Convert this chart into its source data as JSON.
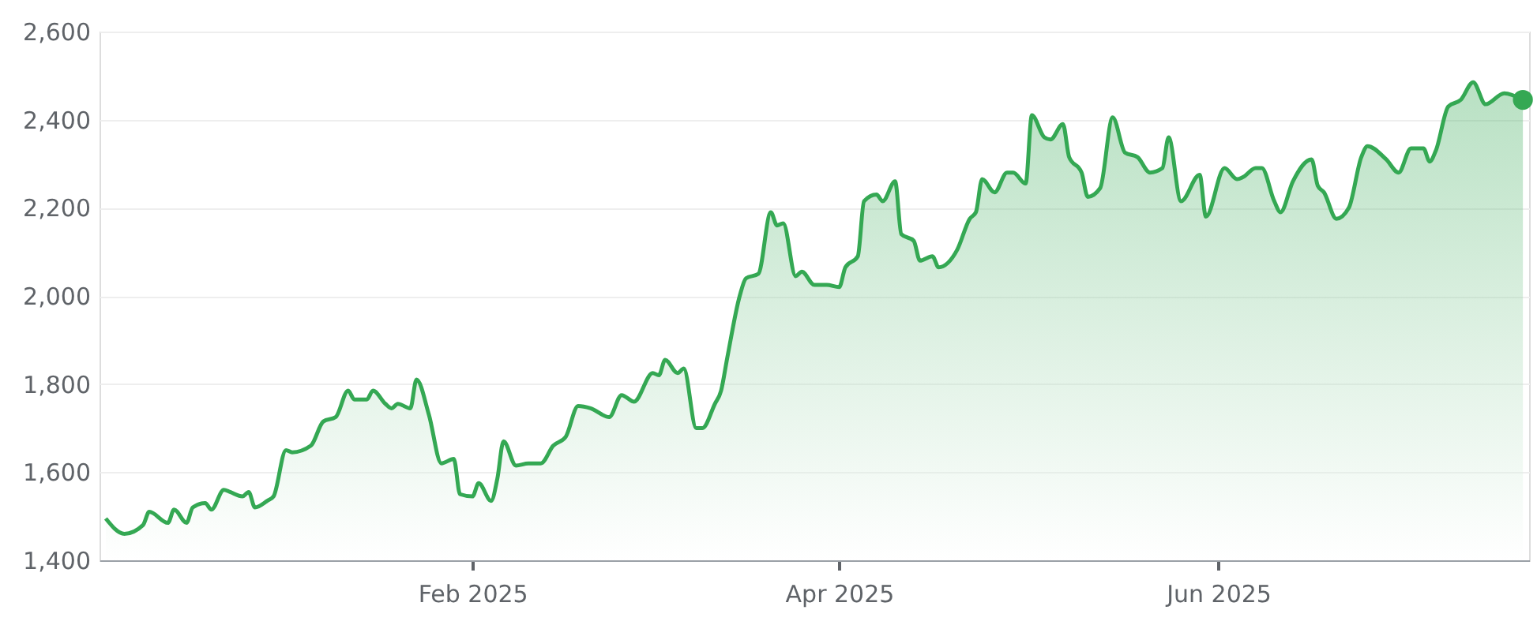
{
  "chart_data": {
    "type": "area",
    "xlim": [
      "2024-12-03",
      "2025-07-21"
    ],
    "xticks": [
      {
        "value": "2025-02-01",
        "label": "Feb 2025"
      },
      {
        "value": "2025-04-01",
        "label": "Apr 2025"
      },
      {
        "value": "2025-06-01",
        "label": "Jun 2025"
      }
    ],
    "ylim": [
      1400,
      2600
    ],
    "yticks": [
      {
        "value": 1400,
        "label": "1,400"
      },
      {
        "value": 1600,
        "label": "1,600"
      },
      {
        "value": 1800,
        "label": "1,800"
      },
      {
        "value": 2000,
        "label": "2,000"
      },
      {
        "value": 2200,
        "label": "2,200"
      },
      {
        "value": 2400,
        "label": "2,400"
      },
      {
        "value": 2600,
        "label": "2,600"
      }
    ],
    "grid": "y",
    "line_style": "solid",
    "series": [
      {
        "color": "#34a853",
        "x": [
          "2024-12-04",
          "2024-12-07",
          "2024-12-10",
          "2024-12-11",
          "2024-12-14",
          "2024-12-15",
          "2024-12-17",
          "2024-12-18",
          "2024-12-20",
          "2024-12-21",
          "2024-12-23",
          "2024-12-24",
          "2024-12-26",
          "2024-12-27",
          "2024-12-28",
          "2024-12-30",
          "2024-12-31",
          "2025-01-02",
          "2025-01-03",
          "2025-01-06",
          "2025-01-08",
          "2025-01-10",
          "2025-01-12",
          "2025-01-13",
          "2025-01-15",
          "2025-01-16",
          "2025-01-18",
          "2025-01-19",
          "2025-01-20",
          "2025-01-22",
          "2025-01-23",
          "2025-01-25",
          "2025-01-27",
          "2025-01-29",
          "2025-01-30",
          "2025-02-01",
          "2025-02-02",
          "2025-02-04",
          "2025-02-05",
          "2025-02-06",
          "2025-02-08",
          "2025-02-10",
          "2025-02-12",
          "2025-02-14",
          "2025-02-16",
          "2025-02-18",
          "2025-02-20",
          "2025-02-23",
          "2025-02-25",
          "2025-02-27",
          "2025-03-02",
          "2025-03-03",
          "2025-03-04",
          "2025-03-06",
          "2025-03-07",
          "2025-03-09",
          "2025-03-10",
          "2025-03-12",
          "2025-03-13",
          "2025-03-14",
          "2025-03-16",
          "2025-03-17",
          "2025-03-19",
          "2025-03-21",
          "2025-03-22",
          "2025-03-23",
          "2025-03-25",
          "2025-03-26",
          "2025-03-28",
          "2025-03-30",
          "2025-04-01",
          "2025-04-02",
          "2025-04-04",
          "2025-04-05",
          "2025-04-07",
          "2025-04-08",
          "2025-04-10",
          "2025-04-11",
          "2025-04-13",
          "2025-04-14",
          "2025-04-16",
          "2025-04-17",
          "2025-04-20",
          "2025-04-22",
          "2025-04-23",
          "2025-04-24",
          "2025-04-26",
          "2025-04-28",
          "2025-04-29",
          "2025-05-01",
          "2025-05-02",
          "2025-05-04",
          "2025-05-05",
          "2025-05-07",
          "2025-05-08",
          "2025-05-10",
          "2025-05-11",
          "2025-05-13",
          "2025-05-15",
          "2025-05-17",
          "2025-05-19",
          "2025-05-21",
          "2025-05-23",
          "2025-05-24",
          "2025-05-26",
          "2025-05-29",
          "2025-05-30",
          "2025-06-02",
          "2025-06-04",
          "2025-06-05",
          "2025-06-07",
          "2025-06-08",
          "2025-06-10",
          "2025-06-11",
          "2025-06-13",
          "2025-06-16",
          "2025-06-17",
          "2025-06-18",
          "2025-06-20",
          "2025-06-22",
          "2025-06-24",
          "2025-06-25",
          "2025-06-28",
          "2025-06-30",
          "2025-07-02",
          "2025-07-04",
          "2025-07-05",
          "2025-07-06",
          "2025-07-08",
          "2025-07-10",
          "2025-07-12",
          "2025-07-14",
          "2025-07-17",
          "2025-07-20"
        ],
        "values": [
          1495,
          1460,
          1480,
          1510,
          1485,
          1515,
          1485,
          1520,
          1530,
          1515,
          1560,
          1555,
          1545,
          1555,
          1520,
          1535,
          1545,
          1650,
          1645,
          1660,
          1715,
          1725,
          1785,
          1765,
          1765,
          1785,
          1755,
          1745,
          1755,
          1745,
          1810,
          1730,
          1620,
          1630,
          1550,
          1545,
          1575,
          1535,
          1585,
          1670,
          1615,
          1620,
          1620,
          1660,
          1680,
          1750,
          1745,
          1725,
          1775,
          1760,
          1825,
          1820,
          1855,
          1825,
          1835,
          1700,
          1700,
          1755,
          1785,
          1860,
          2000,
          2040,
          2050,
          2190,
          2160,
          2165,
          2045,
          2055,
          2025,
          2025,
          2020,
          2065,
          2090,
          2215,
          2230,
          2215,
          2260,
          2140,
          2125,
          2080,
          2090,
          2065,
          2105,
          2175,
          2190,
          2265,
          2235,
          2280,
          2280,
          2255,
          2410,
          2360,
          2355,
          2390,
          2315,
          2280,
          2225,
          2245,
          2405,
          2325,
          2315,
          2280,
          2290,
          2360,
          2215,
          2275,
          2180,
          2290,
          2265,
          2270,
          2290,
          2290,
          2215,
          2190,
          2260,
          2310,
          2250,
          2235,
          2175,
          2200,
          2315,
          2340,
          2310,
          2280,
          2335,
          2335,
          2305,
          2330,
          2430,
          2445,
          2485,
          2435,
          2460,
          2445
        ]
      }
    ]
  }
}
